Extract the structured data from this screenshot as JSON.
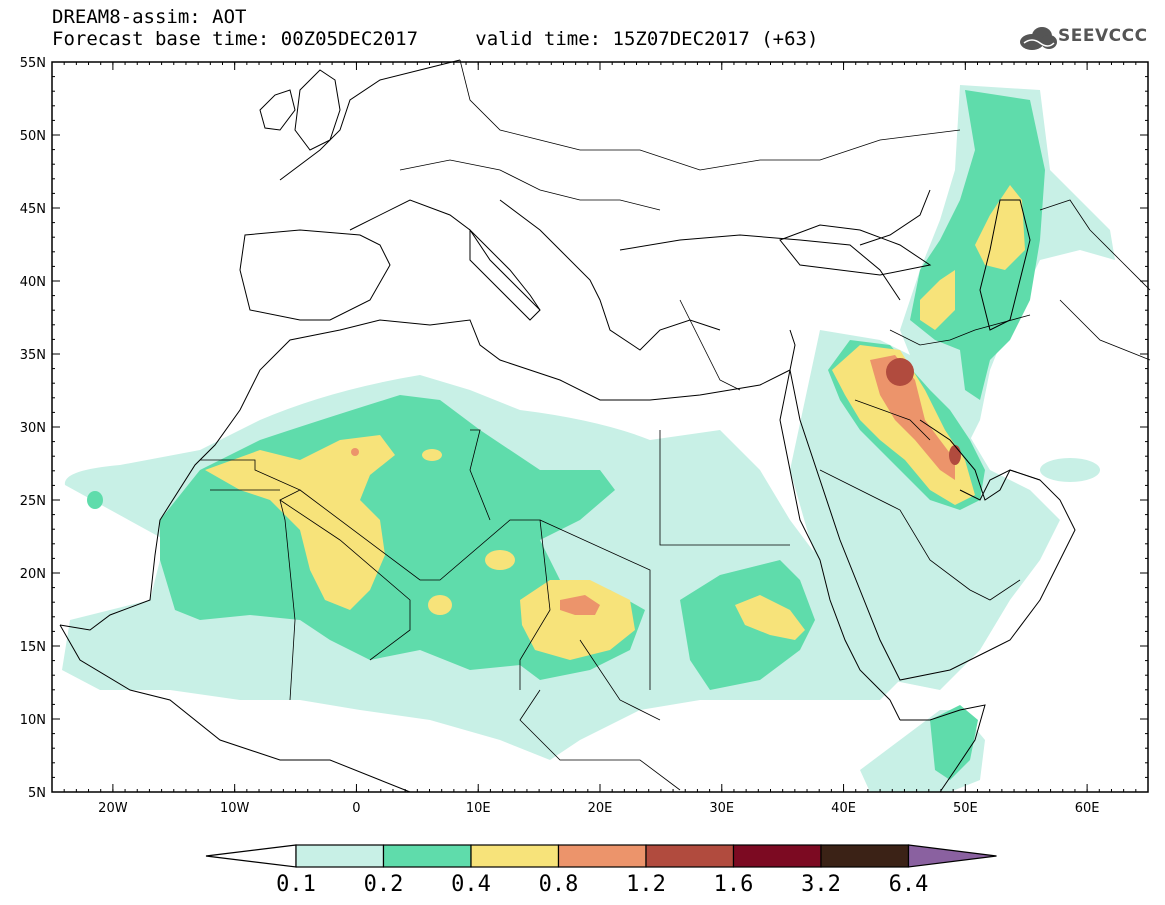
{
  "header": {
    "title": "DREAM8-assim: AOT",
    "base_label": "Forecast base time: 00Z05DEC2017",
    "valid_label": "valid time: 15Z07DEC2017 (+63)"
  },
  "logo": {
    "text": "SEEVCCC",
    "icon": "cloud-icon"
  },
  "axes": {
    "lat_ticks": [
      "55N",
      "50N",
      "45N",
      "40N",
      "35N",
      "30N",
      "25N",
      "20N",
      "15N",
      "10N",
      "5N"
    ],
    "lon_ticks": [
      "20W",
      "10W",
      "0",
      "10E",
      "20E",
      "30E",
      "40E",
      "50E",
      "60E"
    ],
    "lat_values": [
      55,
      50,
      45,
      40,
      35,
      30,
      25,
      20,
      15,
      10,
      5
    ],
    "lon_values": [
      -20,
      -10,
      0,
      10,
      20,
      30,
      40,
      50,
      60
    ],
    "lon_range": [
      -25,
      65
    ],
    "lat_range": [
      5,
      55
    ]
  },
  "colorbar": {
    "labels": [
      "0.1",
      "0.2",
      "0.4",
      "0.8",
      "1.2",
      "1.6",
      "3.2",
      "6.4"
    ],
    "colors": [
      "#c8f0e6",
      "#5fdcab",
      "#f7e37a",
      "#ec946b",
      "#b14b3e",
      "#7c0a22",
      "#3b2216"
    ],
    "under_color": "#ffffff",
    "over_color": "#8a61a0"
  }
}
